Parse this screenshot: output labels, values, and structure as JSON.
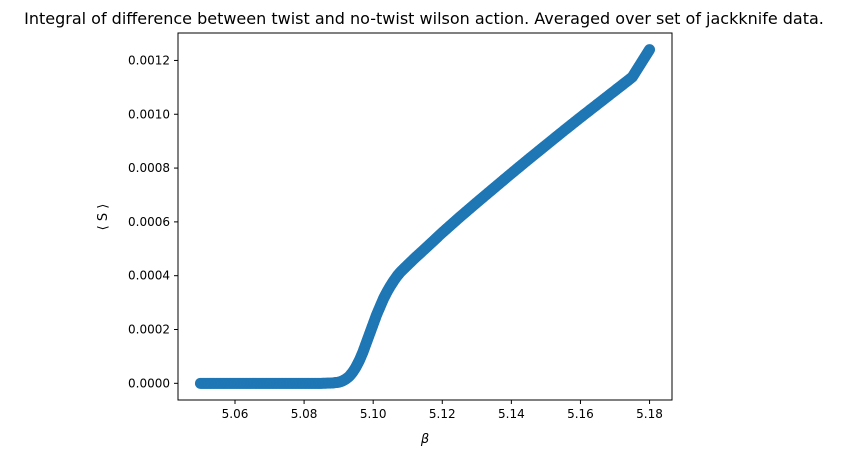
{
  "chart_data": {
    "type": "scatter",
    "title": "Integral of difference between twist and no-twist wilson action. Averaged over set of jackknife data.",
    "xlabel": "β",
    "ylabel": "⟨ S ⟩",
    "xlim": [
      5.0435,
      5.1865
    ],
    "ylim": [
      -6.2e-05,
      0.001302
    ],
    "xticks": [
      5.06,
      5.08,
      5.1,
      5.12,
      5.14,
      5.16,
      5.18
    ],
    "xtick_labels": [
      "5.06",
      "5.08",
      "5.10",
      "5.12",
      "5.14",
      "5.16",
      "5.18"
    ],
    "yticks": [
      0.0,
      0.0002,
      0.0004,
      0.0006,
      0.0008,
      0.001,
      0.0012
    ],
    "ytick_labels": [
      "0.0000",
      "0.0002",
      "0.0004",
      "0.0006",
      "0.0008",
      "0.0010",
      "0.0012"
    ],
    "grid": false,
    "marker_color": "#1f77b4",
    "x": [
      5.05,
      5.055,
      5.06,
      5.065,
      5.07,
      5.075,
      5.08,
      5.085,
      5.088,
      5.09,
      5.091,
      5.092,
      5.093,
      5.094,
      5.095,
      5.096,
      5.097,
      5.098,
      5.099,
      5.1,
      5.101,
      5.102,
      5.103,
      5.104,
      5.105,
      5.106,
      5.107,
      5.108,
      5.11,
      5.112,
      5.115,
      5.12,
      5.125,
      5.13,
      5.135,
      5.14,
      5.145,
      5.15,
      5.155,
      5.16,
      5.165,
      5.17,
      5.175,
      5.18
    ],
    "y": [
      0.0,
      0.0,
      0.0,
      0.0,
      0.0,
      0.0,
      0.0,
      0.0,
      1e-06,
      4e-06,
      8e-06,
      1.5e-05,
      2.5e-05,
      4e-05,
      6e-05,
      8.5e-05,
      0.000115,
      0.00015,
      0.000185,
      0.00022,
      0.000255,
      0.000285,
      0.000315,
      0.00034,
      0.000362,
      0.000382,
      0.0004,
      0.000415,
      0.00044,
      0.000465,
      0.0005,
      0.00056,
      0.000617,
      0.000672,
      0.000726,
      0.00078,
      0.000833,
      0.000885,
      0.000937,
      0.000988,
      0.001038,
      0.001088,
      0.001138,
      0.00124
    ]
  }
}
